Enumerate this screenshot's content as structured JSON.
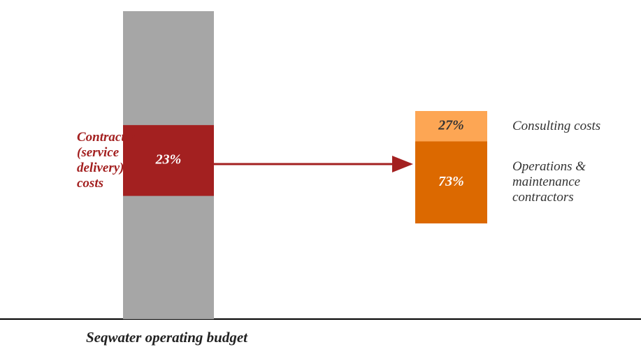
{
  "chart_data": {
    "type": "bar-of-bar",
    "title": "Seqwater operating budget",
    "base_color": "#a6a6a6",
    "segment": {
      "name": "Contractor (service delivery) costs",
      "value": 23,
      "value_label": "23%",
      "color": "#a32020"
    },
    "series": [
      {
        "name": "Consulting costs",
        "color": "#fda654",
        "values": [
          27
        ],
        "value_labels": [
          "27%"
        ]
      },
      {
        "name": "Operations & maintenance contractors",
        "color": "#dc6900",
        "values": [
          73
        ],
        "value_labels": [
          "73%"
        ]
      }
    ]
  }
}
